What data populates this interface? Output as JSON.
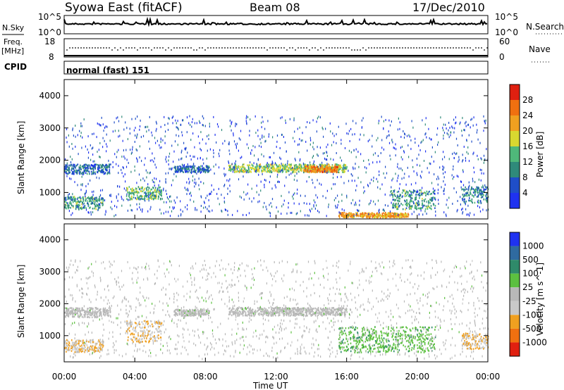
{
  "header": {
    "station": "Syowa East (fitACF)",
    "beam": "Beam 08",
    "date": "17/Dec/2010"
  },
  "sky_panel": {
    "left_label": "N.Sky",
    "right_label": "N.Search",
    "left_ticks": [
      "10^5",
      "10^0"
    ],
    "right_ticks": [
      "10^5",
      "10^0"
    ]
  },
  "freq_panel": {
    "left_label_1": "Freq.",
    "left_label_2": "[MHz]",
    "right_label": "Nave",
    "left_ticks": [
      "18",
      "8"
    ],
    "right_ticks": [
      "60",
      "0"
    ]
  },
  "cpid": {
    "label": "CPID",
    "value": "normal (fast) 151"
  },
  "x_axis": {
    "label": "Time UT",
    "ticks": [
      "00:00",
      "04:00",
      "08:00",
      "12:00",
      "16:00",
      "20:00",
      "00:00"
    ]
  },
  "colors": {
    "power_scale": [
      "#1f32f0",
      "#1f4ec8",
      "#2f8a7a",
      "#4fb87a",
      "#d8d830",
      "#f0a020",
      "#f07010",
      "#e02010"
    ],
    "velocity_scale": [
      "#1f32f0",
      "#2f6aa0",
      "#2f8a6a",
      "#5cc040",
      "#b8b8b8",
      "#c9c9c9",
      "#f0a020",
      "#f07010",
      "#e02010"
    ]
  },
  "chart_data": [
    {
      "type": "heatmap",
      "title": "",
      "xlabel": "Time UT",
      "ylabel": "Slant Range [km]",
      "xlim": [
        0,
        24
      ],
      "ylim": [
        180,
        4500
      ],
      "y_ticks": [
        "1000",
        "2000",
        "3000",
        "4000"
      ],
      "colorbar": {
        "label": "Power [dB]",
        "tick_labels": [
          "4",
          "8",
          "12",
          "16",
          "20",
          "24",
          "28"
        ],
        "range": [
          0,
          32
        ]
      },
      "echo_bands": [
        {
          "t_start": 0.0,
          "t_end": 2.6,
          "range_start": 1600,
          "range_end": 1900,
          "power": 8
        },
        {
          "t_start": 0.0,
          "t_end": 2.2,
          "range_start": 500,
          "range_end": 900,
          "power": 12
        },
        {
          "t_start": 3.5,
          "t_end": 5.5,
          "range_start": 800,
          "range_end": 1200,
          "power": 14
        },
        {
          "t_start": 6.2,
          "t_end": 8.2,
          "range_start": 1650,
          "range_end": 1850,
          "power": 8
        },
        {
          "t_start": 9.3,
          "t_end": 16.0,
          "range_start": 1650,
          "range_end": 1900,
          "power": 16
        },
        {
          "t_start": 13.5,
          "t_end": 15.5,
          "range_start": 1650,
          "range_end": 1850,
          "power": 24
        },
        {
          "t_start": 15.5,
          "t_end": 19.5,
          "range_start": 250,
          "range_end": 400,
          "power": 22
        },
        {
          "t_start": 18.5,
          "t_end": 21.0,
          "range_start": 500,
          "range_end": 1100,
          "power": 12
        },
        {
          "t_start": 22.5,
          "t_end": 24.0,
          "range_start": 700,
          "range_end": 1200,
          "power": 10
        }
      ]
    },
    {
      "type": "heatmap",
      "title": "",
      "xlabel": "Time UT",
      "ylabel": "Slant Range [km]",
      "xlim": [
        0,
        24
      ],
      "ylim": [
        180,
        4500
      ],
      "y_ticks": [
        "1000",
        "2000",
        "3000",
        "4000"
      ],
      "colorbar": {
        "label": "Velocity [m s^-1]",
        "tick_labels": [
          "1000",
          "500",
          "100",
          "25",
          "-25",
          "-100",
          "-500",
          "-1000"
        ],
        "range": [
          -1200,
          1200
        ]
      },
      "echo_bands": [
        {
          "t_start": 0.0,
          "t_end": 2.6,
          "range_start": 1600,
          "range_end": 1900,
          "velocity": 0
        },
        {
          "t_start": 0.0,
          "t_end": 2.2,
          "range_start": 500,
          "range_end": 900,
          "velocity": -400
        },
        {
          "t_start": 3.5,
          "t_end": 5.5,
          "range_start": 800,
          "range_end": 1500,
          "velocity": -400
        },
        {
          "t_start": 6.2,
          "t_end": 8.2,
          "range_start": 1650,
          "range_end": 1850,
          "velocity": 0
        },
        {
          "t_start": 9.3,
          "t_end": 16.0,
          "range_start": 1650,
          "range_end": 1900,
          "velocity": 0
        },
        {
          "t_start": 15.5,
          "t_end": 21.0,
          "range_start": 500,
          "range_end": 1300,
          "velocity": 300
        },
        {
          "t_start": 22.5,
          "t_end": 24.0,
          "range_start": 600,
          "range_end": 1100,
          "velocity": -400
        }
      ]
    }
  ]
}
